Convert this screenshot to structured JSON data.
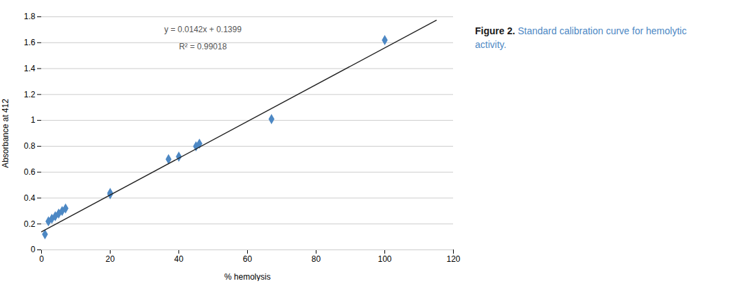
{
  "chart_data": {
    "type": "scatter",
    "title": "Figure 2.",
    "subtitle": "Standard calibration curve for hemolytic activity.",
    "xlabel": "% hemolysis",
    "ylabel": "Absorbance at 412",
    "series": [
      {
        "type": "scatter",
        "color": "#4D88C4",
        "marker": "diamond",
        "x": [
          1,
          2,
          3,
          4,
          5,
          6,
          7,
          20,
          20,
          37,
          40,
          45,
          46,
          67,
          100
        ],
        "values": [
          0.12,
          0.22,
          0.24,
          0.26,
          0.28,
          0.3,
          0.32,
          0.43,
          0.44,
          0.7,
          0.72,
          0.8,
          0.82,
          1.01,
          1.62
        ]
      },
      {
        "type": "line",
        "color": "#222222",
        "line_style": "solid",
        "x": [
          0,
          115
        ],
        "values": [
          0.1399,
          1.7729
        ]
      }
    ],
    "annotations": [
      {
        "text": "y = 0.0142x + 0.1399",
        "x": 47,
        "y": 1.7
      },
      {
        "text": "R² = 0.99018",
        "x": 47,
        "y": 1.57
      }
    ],
    "xlim": [
      0,
      120
    ],
    "ylim": [
      0,
      1.8
    ],
    "xticks": [
      0,
      20,
      40,
      60,
      80,
      100,
      120
    ],
    "yticks": [
      0,
      0.2,
      0.4,
      0.6,
      0.8,
      1,
      1.2,
      1.4,
      1.6,
      1.8
    ],
    "grid": true
  }
}
